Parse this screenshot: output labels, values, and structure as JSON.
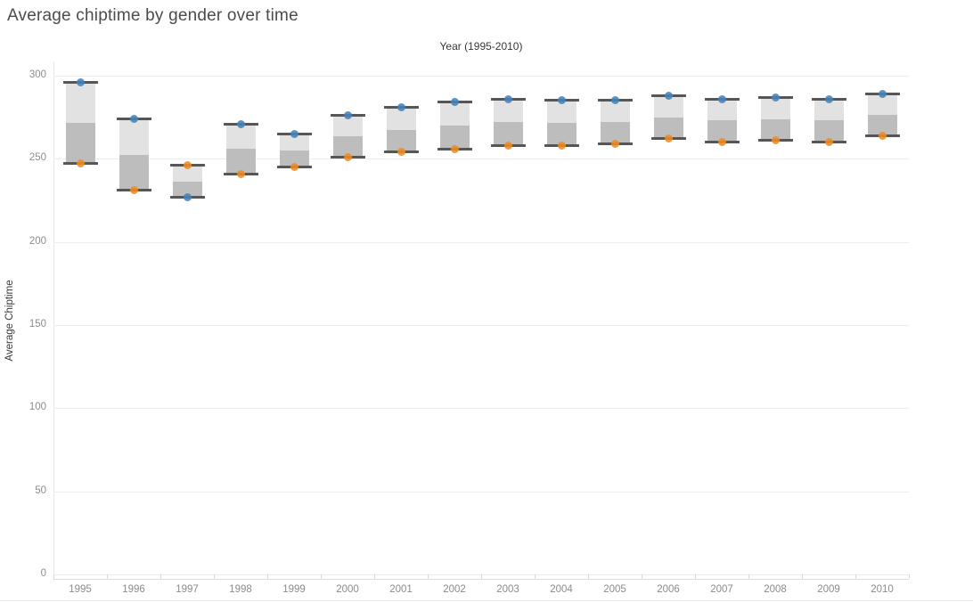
{
  "title": "Average chiptime by gender over time",
  "x_axis_title": "Year (1995-2010)",
  "y_axis_title": "Average Chiptime",
  "chart_data": {
    "type": "gantt",
    "title": "Average chiptime by gender over time",
    "xlabel": "Year (1995-2010)",
    "ylabel": "Average Chiptime",
    "categories": [
      "1995",
      "1996",
      "1997",
      "1998",
      "1999",
      "2000",
      "2001",
      "2002",
      "2003",
      "2004",
      "2005",
      "2006",
      "2007",
      "2008",
      "2009",
      "2010"
    ],
    "series": [
      {
        "name": "series-blue-dot",
        "color": "#4483b8",
        "values": [
          296,
          274,
          227,
          271,
          265,
          276,
          281,
          284,
          286,
          285,
          285,
          288,
          286,
          287,
          286,
          289
        ]
      },
      {
        "name": "series-orange-dot",
        "color": "#f08b22",
        "values": [
          247,
          231,
          246,
          241,
          245,
          251,
          254,
          256,
          258,
          258,
          259,
          262,
          260,
          261,
          260,
          264
        ]
      }
    ],
    "bar_note": "each year shows a range bar between the two dot values; upper half shaded light gray, lower half medium gray, dark caps at both ends",
    "ylim": [
      0,
      300
    ],
    "y_ticks": [
      0,
      50,
      100,
      150,
      200,
      250,
      300
    ],
    "grid": true,
    "legend_position": "none"
  },
  "colors": {
    "band_light": "#e2e2e2",
    "band_dark": "#bdbdbd",
    "cap": "#565656",
    "gridline": "#ededed",
    "axis_text": "#8c8c8c",
    "title_text": "#4c4c4c"
  }
}
